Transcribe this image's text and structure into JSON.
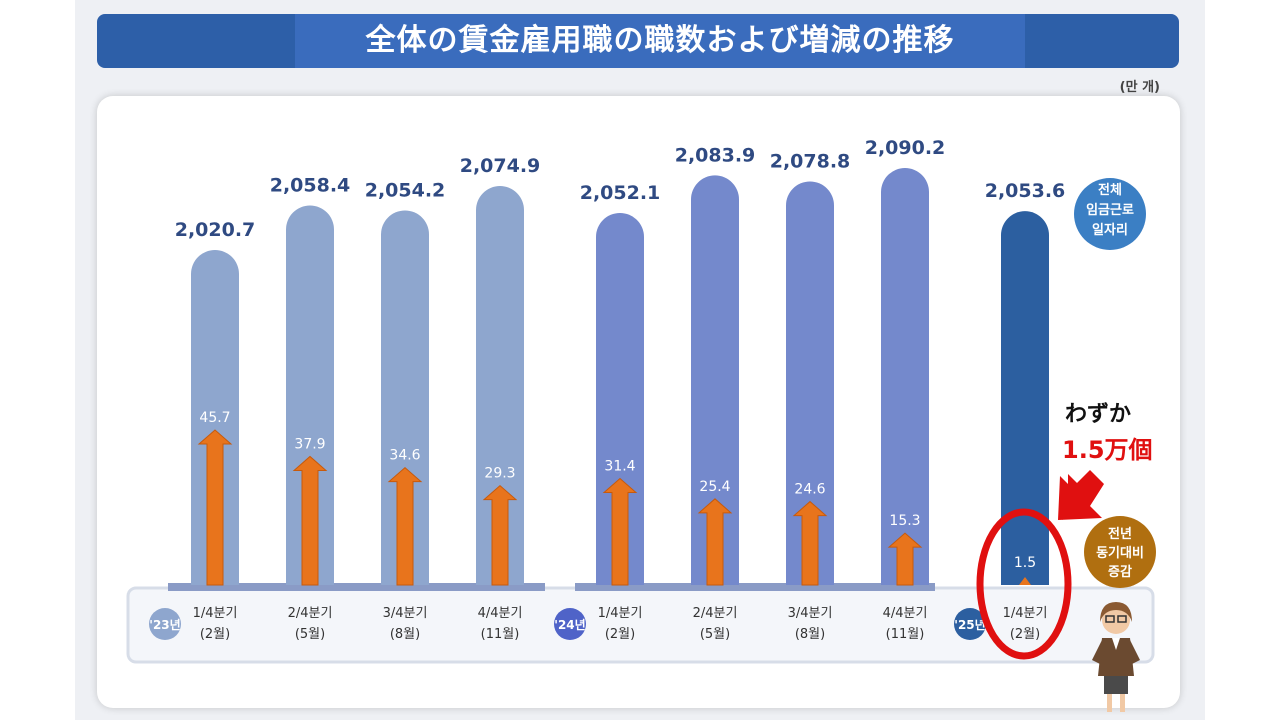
{
  "slide": {
    "title": "全体の賃金雇用職の職数および増減の推移",
    "unit": "(만 개)",
    "callout_line1": "わずか",
    "callout_line2": "1.5万個"
  },
  "colors": {
    "bar_2023": "#8ea6ce",
    "bar_2024": "#7489cc",
    "bar_2025": "#2c5fa0",
    "arrow": "#e8741c",
    "title_bar": "#2d5fa8",
    "highlight_ring": "#e01010",
    "badge_total": "#3b7fc4",
    "badge_change": "#b06f10"
  },
  "chart_data": {
    "type": "bar",
    "categories": [
      "1/4분기 (2월)",
      "2/4분기 (5월)",
      "3/4분기 (8월)",
      "4/4분기 (11월)",
      "1/4분기 (2월)",
      "2/4분기 (5월)",
      "3/4분기 (8월)",
      "4/4분기 (11월)",
      "1/4분기 (2월)"
    ],
    "quarter_labels": [
      "1/4분기",
      "2/4분기",
      "3/4분기",
      "4/4분기",
      "1/4분기",
      "2/4분기",
      "3/4분기",
      "4/4분기",
      "1/4분기"
    ],
    "month_labels": [
      "(2월)",
      "(5월)",
      "(8월)",
      "(11월)",
      "(2월)",
      "(5월)",
      "(8월)",
      "(11월)",
      "(2월)"
    ],
    "groups": [
      {
        "label": "'23년",
        "start": 0,
        "count": 4
      },
      {
        "label": "'24년",
        "start": 4,
        "count": 4
      },
      {
        "label": "'25년",
        "start": 8,
        "count": 1
      }
    ],
    "series": [
      {
        "name": "전체 임금근로 일자리",
        "values": [
          2020.7,
          2058.4,
          2054.2,
          2074.9,
          2052.1,
          2083.9,
          2078.8,
          2090.2,
          2053.6
        ],
        "labels": [
          "2,020.7",
          "2,058.4",
          "2,054.2",
          "2,074.9",
          "2,052.1",
          "2,083.9",
          "2,078.8",
          "2,090.2",
          "2,053.6"
        ]
      },
      {
        "name": "전년 동기대비 증감",
        "values": [
          45.7,
          37.9,
          34.6,
          29.3,
          31.4,
          25.4,
          24.6,
          15.3,
          1.5
        ],
        "labels": [
          "45.7",
          "37.9",
          "34.6",
          "29.3",
          "31.4",
          "25.4",
          "24.6",
          "15.3",
          "1.5"
        ]
      }
    ],
    "badge_total_lines": [
      "전체",
      "임금근로",
      "일자리"
    ],
    "badge_change_lines": [
      "전년",
      "동기대비",
      "증감"
    ]
  }
}
